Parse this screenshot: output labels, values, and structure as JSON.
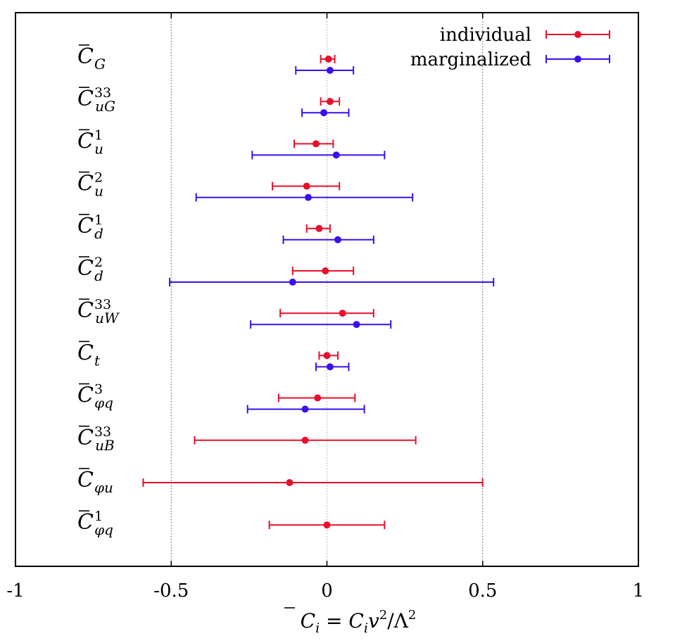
{
  "chart_data": {
    "type": "scatter",
    "subtype": "horizontal-errorbar",
    "xlabel": {
      "base": "C",
      "sub": "i",
      "eq": " = ",
      "rhs_base": "C",
      "rhs_sub": "i",
      "rhs_rest": "v",
      "rhs_sup": "2",
      "slash": "/",
      "lambda": "Λ",
      "lambda_sup": "2"
    },
    "xlim": [
      -1,
      1
    ],
    "xticks": [
      {
        "value": -1,
        "label": "-1"
      },
      {
        "value": -0.5,
        "label": "-0.5"
      },
      {
        "value": 0,
        "label": "0"
      },
      {
        "value": 0.5,
        "label": "0.5"
      },
      {
        "value": 1,
        "label": "1"
      }
    ],
    "grid": "vertical dotted at -0.5, 0, 0.5",
    "legend_position": "top-right",
    "series": [
      {
        "name": "individual",
        "color": "#e8102a"
      },
      {
        "name": "marginalized",
        "color": "#3a10ee"
      }
    ],
    "coefficients": [
      {
        "base": "C",
        "sub": "G",
        "sup": "",
        "individual": {
          "center": 0.005,
          "low": -0.02,
          "high": 0.025
        },
        "marginalized": {
          "center": 0.01,
          "low": -0.1,
          "high": 0.085
        }
      },
      {
        "base": "C",
        "sub": "uG",
        "sup": "33",
        "individual": {
          "center": 0.01,
          "low": -0.02,
          "high": 0.04
        },
        "marginalized": {
          "center": -0.01,
          "low": -0.08,
          "high": 0.07
        }
      },
      {
        "base": "C",
        "sub": "u",
        "sup": "1",
        "individual": {
          "center": -0.035,
          "low": -0.105,
          "high": 0.02
        },
        "marginalized": {
          "center": 0.03,
          "low": -0.24,
          "high": 0.185
        }
      },
      {
        "base": "C",
        "sub": "u",
        "sup": "2",
        "individual": {
          "center": -0.065,
          "low": -0.175,
          "high": 0.04
        },
        "marginalized": {
          "center": -0.06,
          "low": -0.42,
          "high": 0.275
        }
      },
      {
        "base": "C",
        "sub": "d",
        "sup": "1",
        "individual": {
          "center": -0.025,
          "low": -0.065,
          "high": 0.01
        },
        "marginalized": {
          "center": 0.035,
          "low": -0.14,
          "high": 0.15
        }
      },
      {
        "base": "C",
        "sub": "d",
        "sup": "2",
        "individual": {
          "center": -0.005,
          "low": -0.11,
          "high": 0.085
        },
        "marginalized": {
          "center": -0.11,
          "low": -0.505,
          "high": 0.535
        }
      },
      {
        "base": "C",
        "sub": "uW",
        "sup": "33",
        "individual": {
          "center": 0.05,
          "low": -0.15,
          "high": 0.15
        },
        "marginalized": {
          "center": 0.095,
          "low": -0.245,
          "high": 0.205
        }
      },
      {
        "base": "C",
        "sub": "t",
        "sup": "",
        "individual": {
          "center": 0.0,
          "low": -0.025,
          "high": 0.035
        },
        "marginalized": {
          "center": 0.01,
          "low": -0.035,
          "high": 0.07
        }
      },
      {
        "base": "C",
        "sub": "φq",
        "sup": "3",
        "individual": {
          "center": -0.03,
          "low": -0.155,
          "high": 0.09
        },
        "marginalized": {
          "center": -0.07,
          "low": -0.255,
          "high": 0.12
        }
      },
      {
        "base": "C",
        "sub": "uB",
        "sup": "33",
        "individual": {
          "center": -0.07,
          "low": -0.425,
          "high": 0.285
        },
        "marginalized": null
      },
      {
        "base": "C",
        "sub": "φu",
        "sup": "",
        "individual": {
          "center": -0.12,
          "low": -0.59,
          "high": 0.5
        },
        "marginalized": null
      },
      {
        "base": "C",
        "sub": "φq",
        "sup": "1",
        "individual": {
          "center": 0.0,
          "low": -0.185,
          "high": 0.185
        },
        "marginalized": null
      }
    ]
  }
}
